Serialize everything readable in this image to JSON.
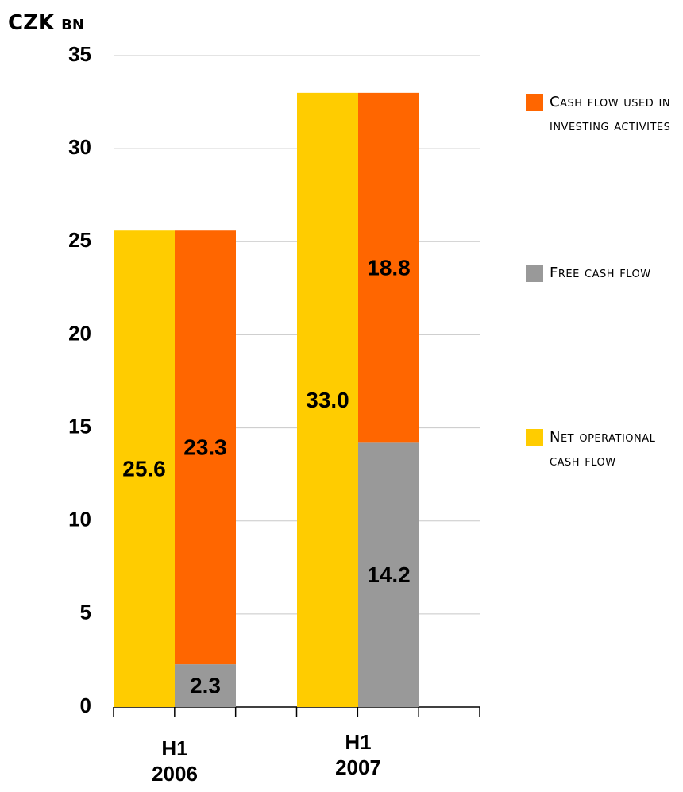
{
  "chart_data": {
    "type": "bar",
    "y_label": "CZK bn",
    "categories": [
      "H1 2006",
      "H1 2007"
    ],
    "series": [
      {
        "name": "Cash flow used in investing activites",
        "color": "#ff6600",
        "values": [
          23.3,
          18.8
        ]
      },
      {
        "name": "Free cash flow",
        "color": "#999999",
        "values": [
          2.3,
          14.2
        ]
      },
      {
        "name": "Net operational cash flow",
        "color": "#ffcc00",
        "values": [
          25.6,
          33.0
        ],
        "value_labels": [
          "25.6",
          "33.0"
        ]
      }
    ],
    "ylim": [
      0,
      35
    ],
    "yticks": [
      0,
      5,
      10,
      15,
      20,
      25,
      30,
      35
    ],
    "grid": true,
    "legend": "right"
  }
}
